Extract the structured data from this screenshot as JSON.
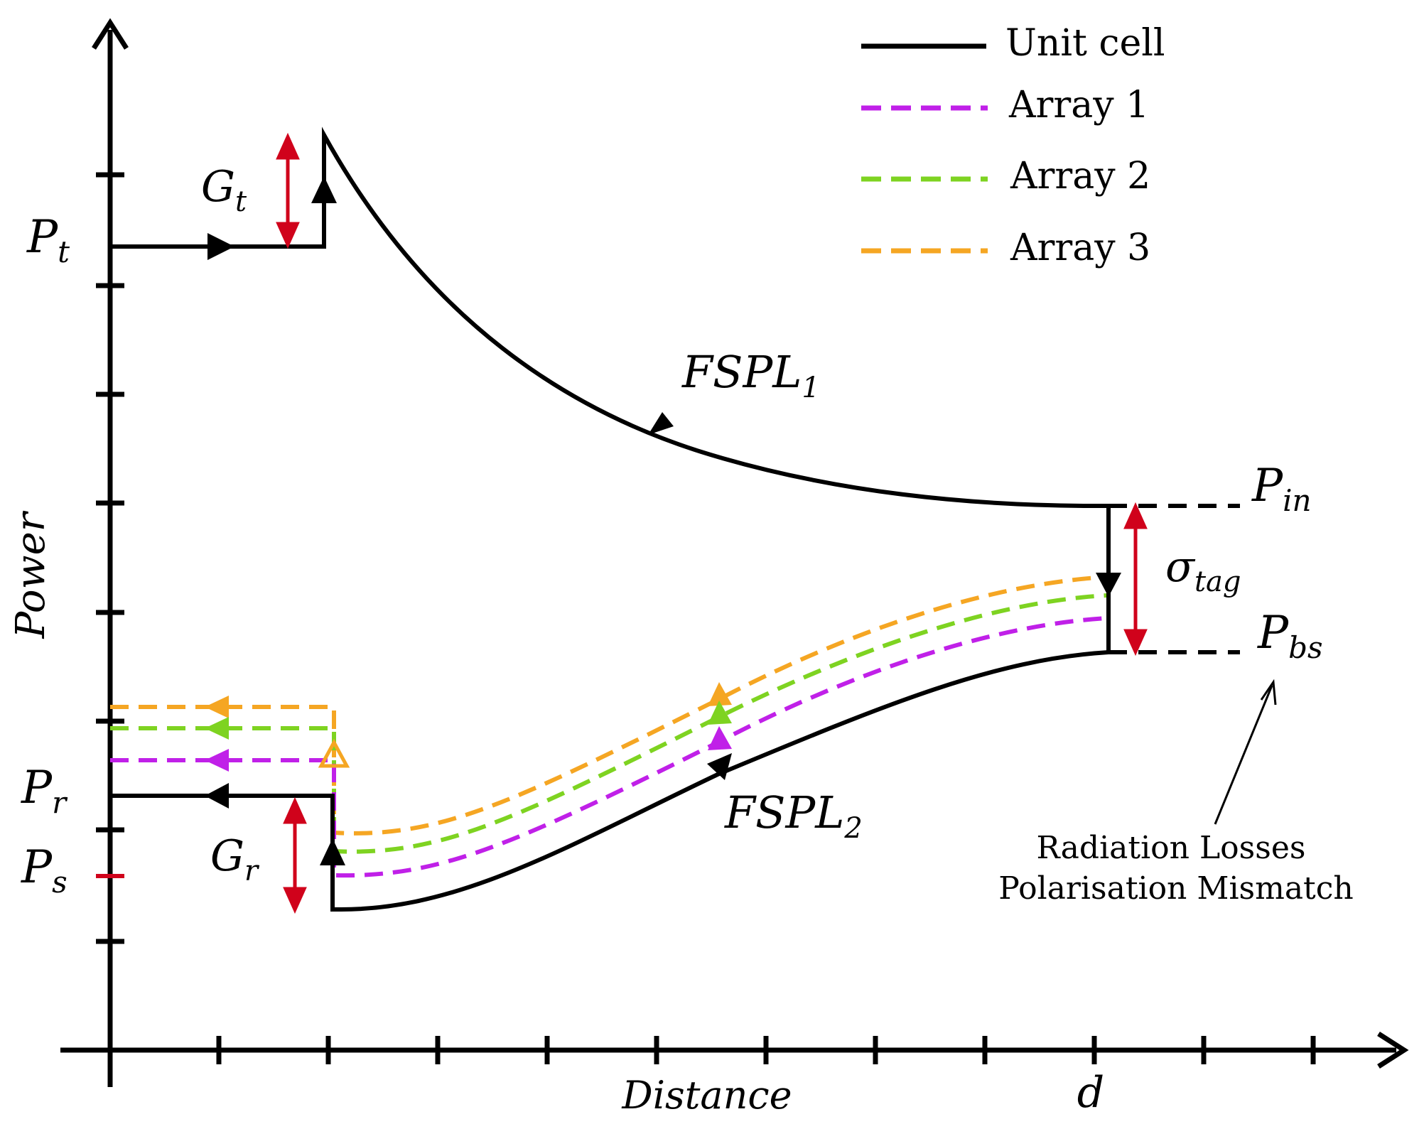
{
  "colors": {
    "unit_cell": "#000000",
    "array1": "#c020e8",
    "array2": "#7ed321",
    "array3": "#f5a623",
    "annotation": "#d0021b"
  },
  "legend": {
    "unit_cell": "Unit cell",
    "array1": "Array 1",
    "array2": "Array 2",
    "array3": "Array 3"
  },
  "axes": {
    "ylabel": "Power",
    "xlabel": "Distance",
    "x_marker": "d"
  },
  "levels": {
    "pt": {
      "base": "P",
      "sub": "t"
    },
    "pr": {
      "base": "P",
      "sub": "r"
    },
    "ps": {
      "base": "P",
      "sub": "s"
    },
    "pin": {
      "base": "P",
      "sub": "in"
    },
    "pbs": {
      "base": "P",
      "sub": "bs"
    }
  },
  "labels": {
    "gt": {
      "base": "G",
      "sub": "t"
    },
    "gr": {
      "base": "G",
      "sub": "r"
    },
    "fspl1": {
      "base": "FSPL",
      "sub": "1"
    },
    "fspl2": {
      "base": "FSPL",
      "sub": "2"
    },
    "sigma": {
      "base": "σ",
      "sub": "tag"
    }
  },
  "note": {
    "line1": "Radiation Losses",
    "line2": "Polarisation Mismatch"
  }
}
